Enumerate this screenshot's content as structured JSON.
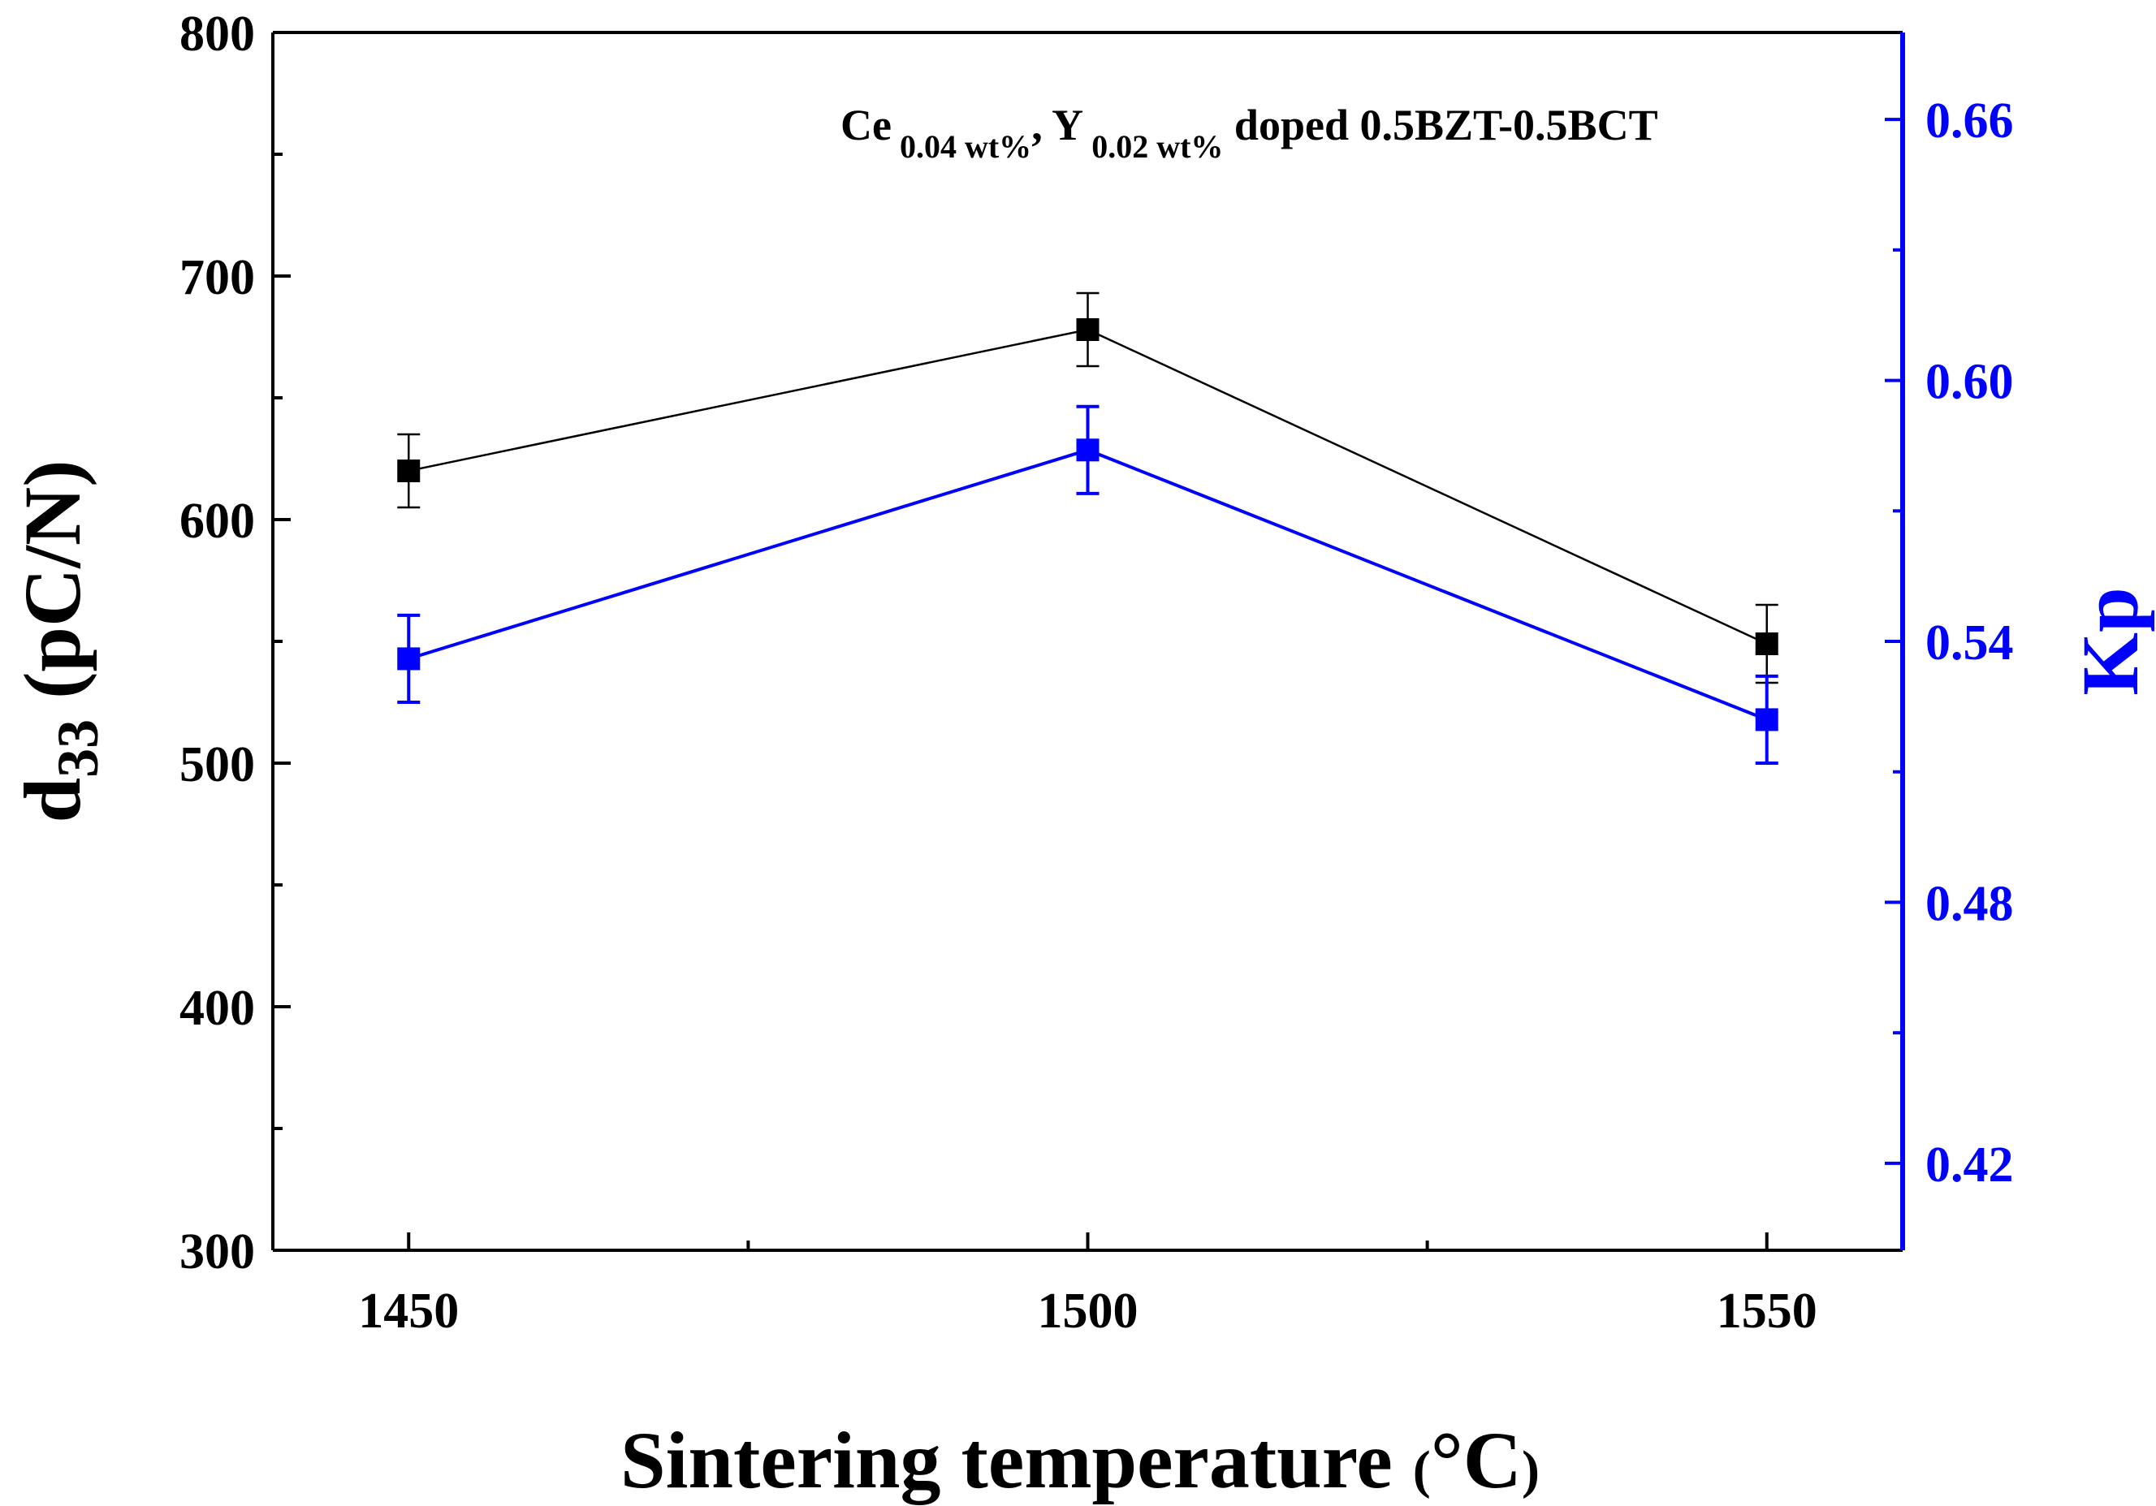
{
  "chart_data": {
    "type": "line",
    "title": "",
    "annotation": {
      "parts": [
        "Ce",
        " 0.04 wt%",
        ", Y",
        " 0.02 wt%",
        " doped 0.5BZT-0.5BCT"
      ]
    },
    "x": [
      1450,
      1500,
      1550
    ],
    "x_tick_labels": [
      "1450",
      "1500",
      "1550"
    ],
    "xlabel": "Sintering temperature (°C)",
    "xlabel_parts": {
      "main": "Sintering temperature ",
      "paren_open": "(",
      "unit": "°C",
      "paren_close": ")"
    },
    "xlim": [
      1440,
      1560
    ],
    "ylabel_left": {
      "main": "d",
      "sub": "33",
      "rest": " (pC/N)"
    },
    "ylim_left": [
      300,
      800
    ],
    "y_left_ticks": [
      "300",
      "400",
      "500",
      "600",
      "700",
      "800"
    ],
    "ylabel_right": "Kp",
    "ylim_right": [
      0.4,
      0.68
    ],
    "y_right_ticks": [
      "0.42",
      "0.48",
      "0.54",
      "0.60",
      "0.66"
    ],
    "series": [
      {
        "name": "d33",
        "axis": "left",
        "color": "#000000",
        "values": [
          620,
          678,
          549
        ],
        "errors": [
          15,
          15,
          16
        ]
      },
      {
        "name": "Kp",
        "axis": "right",
        "color": "#0000ff",
        "values": [
          0.536,
          0.584,
          0.522
        ],
        "errors": [
          0.01,
          0.01,
          0.01
        ]
      }
    ]
  },
  "colors": {
    "axis_left": "#000000",
    "axis_right": "#0000ff"
  }
}
